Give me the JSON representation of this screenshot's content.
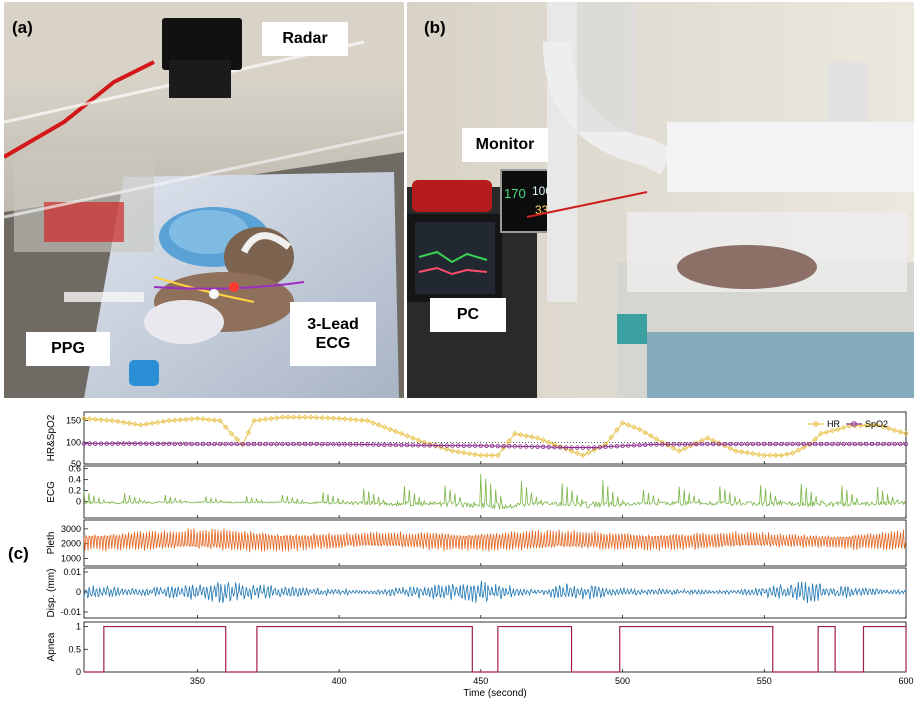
{
  "panels": {
    "a": {
      "letter": "(a)",
      "labels": {
        "radar": "Radar",
        "ppg": "PPG",
        "ecg_line1": "3-Lead",
        "ecg_line2": "ECG"
      }
    },
    "b": {
      "letter": "(b)",
      "labels": {
        "monitor": "Monitor",
        "pc": "PC"
      },
      "monitor_readouts": {
        "hr": "170",
        "spo2": "100",
        "third": "33"
      }
    },
    "c": {
      "letter": "(c)"
    }
  },
  "colors": {
    "hr": "#e8c24a",
    "spo2": "#8a2d8e",
    "ecg": "#7ab648",
    "pleth": "#e2641f",
    "disp": "#1f77b4",
    "apnea": "#a0204a"
  },
  "chart_data": {
    "type": "line",
    "xlabel": "Time (second)",
    "xlim": [
      310,
      600
    ],
    "xticks": [
      350,
      400,
      450,
      500,
      550,
      600
    ],
    "subplots": [
      {
        "id": "hr_spo2",
        "ylabel": "HR&SpO2",
        "ylim": [
          50,
          170
        ],
        "yticks": [
          50,
          100,
          150
        ],
        "legend": {
          "position": "top-right",
          "entries": [
            "HR",
            "SpO2"
          ]
        },
        "series": [
          {
            "name": "HR",
            "color": "#e8c24a",
            "marker": "diamond",
            "x": [
              310,
              320,
              330,
              340,
              350,
              358,
              362,
              366,
              370,
              380,
              390,
              400,
              410,
              420,
              430,
              440,
              450,
              456,
              462,
              470,
              478,
              486,
              494,
              500,
              506,
              514,
              520,
              530,
              540,
              550,
              556,
              560,
              566,
              570,
              576,
              580,
              590,
              600
            ],
            "y": [
              155,
              150,
              140,
              150,
              155,
              150,
              120,
              95,
              150,
              158,
              158,
              155,
              150,
              125,
              100,
              80,
              70,
              70,
              120,
              110,
              90,
              70,
              95,
              145,
              130,
              100,
              80,
              110,
              80,
              70,
              70,
              75,
              95,
              120,
              130,
              138,
              140,
              120
            ]
          },
          {
            "name": "SpO2",
            "color": "#8a2d8e",
            "marker": "circle",
            "x": [
              310,
              330,
              350,
              370,
              390,
              410,
              430,
              450,
              470,
              480,
              490,
              500,
              510,
              530,
              550,
              570,
              590,
              600
            ],
            "y": [
              97,
              97,
              96,
              96,
              96,
              95,
              93,
              92,
              90,
              88,
              88,
              92,
              95,
              96,
              96,
              96,
              96,
              96
            ]
          }
        ]
      },
      {
        "id": "ecg",
        "ylabel": "ECG",
        "ylim": [
          -0.3,
          0.65
        ],
        "yticks": [
          0,
          0.2,
          0.4,
          0.6
        ],
        "series": [
          {
            "name": "",
            "color": "#7ab648",
            "baseline": 0.0,
            "amp": [
              [
                310,
                0.2
              ],
              [
                330,
                0.15
              ],
              [
                350,
                0.1
              ],
              [
                380,
                0.12
              ],
              [
                400,
                0.2
              ],
              [
                420,
                0.32
              ],
              [
                440,
                0.35
              ],
              [
                456,
                0.6
              ],
              [
                470,
                0.25
              ],
              [
                490,
                0.5
              ],
              [
                505,
                0.25
              ],
              [
                540,
                0.3
              ],
              [
                570,
                0.4
              ],
              [
                600,
                0.2
              ]
            ]
          }
        ]
      },
      {
        "id": "pleth",
        "ylabel": "Pleth",
        "ylim": [
          500,
          3600
        ],
        "yticks": [
          1000,
          2000,
          3000
        ],
        "series": [
          {
            "name": "",
            "color": "#e2641f",
            "baseline": 2200,
            "amp": [
              [
                310,
                700
              ],
              [
                340,
                800
              ],
              [
                360,
                900
              ],
              [
                400,
                600
              ],
              [
                450,
                750
              ],
              [
                470,
                800
              ],
              [
                500,
                700
              ],
              [
                540,
                650
              ],
              [
                570,
                500
              ],
              [
                600,
                800
              ]
            ]
          }
        ]
      },
      {
        "id": "disp",
        "ylabel": "Disp. (mm)",
        "ylim": [
          -0.013,
          0.012
        ],
        "yticks": [
          -0.01,
          0,
          0.01
        ],
        "series": [
          {
            "name": "",
            "color": "#1f77b4",
            "baseline": 0.0,
            "amp": [
              [
                310,
                0.004
              ],
              [
                330,
                0.002
              ],
              [
                360,
                0.006
              ],
              [
                380,
                0.003
              ],
              [
                410,
                0.001
              ],
              [
                450,
                0.006
              ],
              [
                470,
                0.001
              ],
              [
                480,
                0.005
              ],
              [
                500,
                0.002
              ],
              [
                540,
                0.001
              ],
              [
                565,
                0.006
              ],
              [
                580,
                0.003
              ],
              [
                600,
                0.001
              ]
            ]
          }
        ]
      },
      {
        "id": "apnea",
        "ylabel": "Apnea",
        "ylim": [
          0,
          1.1
        ],
        "yticks": [
          0,
          0.5,
          1
        ],
        "series": [
          {
            "name": "",
            "color": "#a0204a",
            "intervals": [
              [
                317,
                360
              ],
              [
                371,
                447
              ],
              [
                456,
                482
              ],
              [
                499,
                553
              ],
              [
                569,
                575
              ],
              [
                585,
                600
              ]
            ]
          }
        ]
      }
    ]
  }
}
